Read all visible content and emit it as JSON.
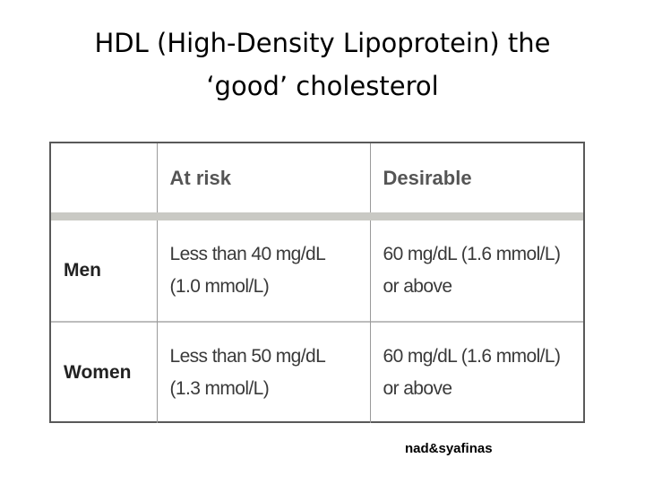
{
  "slide": {
    "title_line1": "HDL (High-Density Lipoprotein) the",
    "title_line2": "‘good’ cholesterol"
  },
  "table": {
    "headers": [
      "",
      "At risk",
      "Desirable"
    ],
    "rows": [
      {
        "label": "Men",
        "at_risk": [
          "Less than 40 mg/dL",
          "(1.0 mmol/L)"
        ],
        "desirable": [
          "60 mg/dL (1.6 mmol/L)",
          "or above"
        ]
      },
      {
        "label": "Women",
        "at_risk": [
          "Less than 50 mg/dL",
          "(1.3 mmol/L)"
        ],
        "desirable": [
          "60 mg/dL (1.6 mmol/L)",
          "or above"
        ]
      }
    ]
  },
  "footer": {
    "credit": "nad&syafinas"
  }
}
